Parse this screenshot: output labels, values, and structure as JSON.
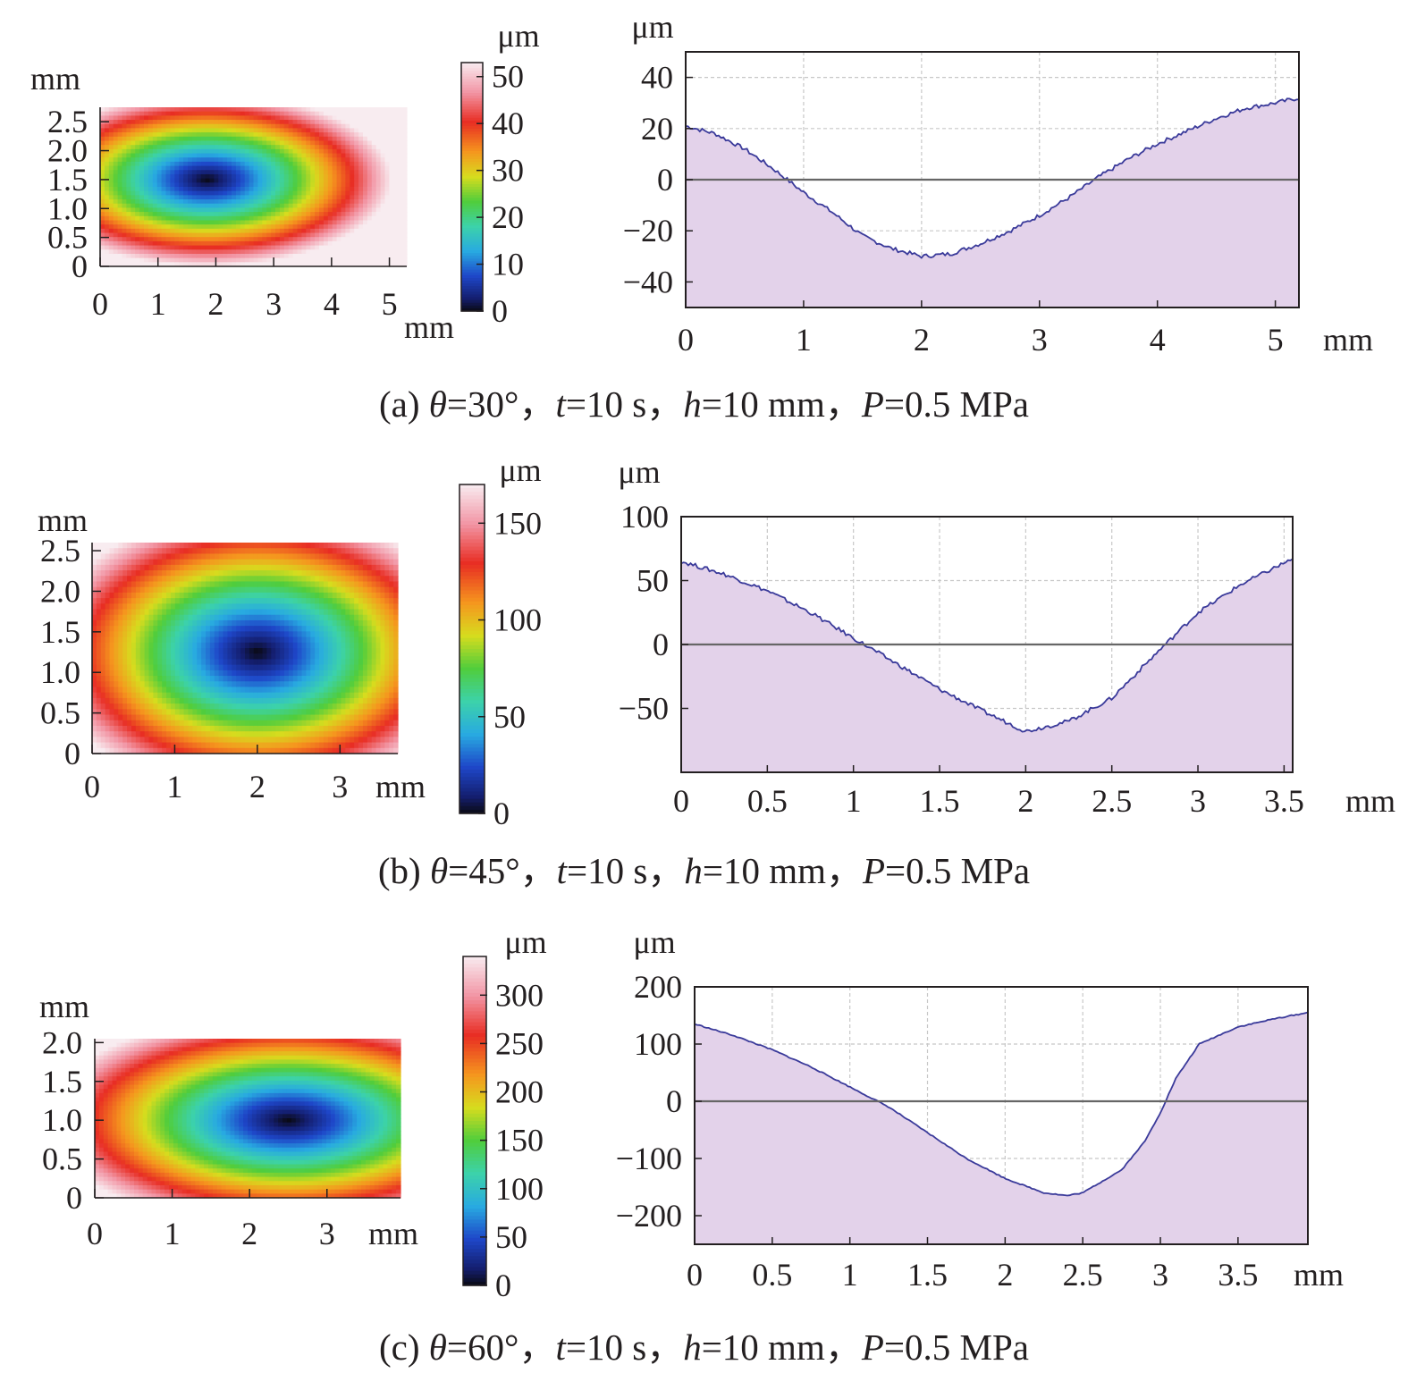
{
  "chart_data": [
    {
      "type": "heatmap",
      "panel": "a",
      "y_unit": "mm",
      "x_unit": "mm",
      "x_ticks": [
        "0",
        "1",
        "2",
        "3",
        "4",
        "5"
      ],
      "y_ticks": [
        "0",
        "0.5",
        "1.0",
        "1.5",
        "2.0",
        "2.5"
      ],
      "xlim": [
        0,
        5.3
      ],
      "ylim": [
        0,
        2.75
      ],
      "field": {
        "center_x": 1.85,
        "center_y": 1.5,
        "radius_x": 2.45,
        "radius_y": 1.15
      },
      "colorbar": {
        "unit": "μm",
        "ticks": [
          "0",
          "10",
          "20",
          "30",
          "40",
          "50"
        ],
        "range": [
          0,
          53
        ]
      }
    },
    {
      "type": "area",
      "panel": "a",
      "y_unit": "μm",
      "x_unit": "mm",
      "x_ticks": [
        "0",
        "1",
        "2",
        "3",
        "4",
        "5"
      ],
      "y_ticks": [
        "−40",
        "−20",
        "0",
        "20",
        "40"
      ],
      "xlim": [
        0,
        5.2
      ],
      "ylim": [
        -50,
        50
      ],
      "zero_line": true,
      "grid": true,
      "x": [
        0,
        0.25,
        0.5,
        0.75,
        1.0,
        1.25,
        1.5,
        1.75,
        2.0,
        2.25,
        2.5,
        2.75,
        3.0,
        3.25,
        3.5,
        3.75,
        4.0,
        4.25,
        4.5,
        4.75,
        5.0,
        5.2
      ],
      "y": [
        21,
        18,
        12,
        4,
        -5,
        -13,
        -22,
        -27,
        -30,
        -29,
        -25,
        -20,
        -14,
        -7,
        1,
        8,
        14,
        19,
        24,
        28,
        30,
        32
      ]
    },
    {
      "type": "heatmap",
      "panel": "b",
      "y_unit": "mm",
      "x_unit": "mm",
      "x_ticks": [
        "0",
        "1",
        "2",
        "3"
      ],
      "y_ticks": [
        "0",
        "0.5",
        "1.0",
        "1.5",
        "2.0",
        "2.5"
      ],
      "xlim": [
        0,
        3.7
      ],
      "ylim": [
        0,
        2.6
      ],
      "field": {
        "center_x": 2.0,
        "center_y": 1.25,
        "radius_x": 2.0,
        "radius_y": 1.35
      },
      "colorbar": {
        "unit": "μm",
        "ticks": [
          "0",
          "50",
          "100",
          "150"
        ],
        "range": [
          0,
          170
        ]
      }
    },
    {
      "type": "area",
      "panel": "b",
      "y_unit": "μm",
      "x_unit": "mm",
      "x_ticks": [
        "0",
        "0.5",
        "1",
        "1.5",
        "2",
        "2.5",
        "3",
        "3.5"
      ],
      "y_ticks": [
        "−50",
        "0",
        "50",
        "100"
      ],
      "xlim": [
        0,
        3.55
      ],
      "ylim": [
        -100,
        100
      ],
      "zero_line": true,
      "grid": true,
      "x": [
        0,
        0.25,
        0.5,
        0.75,
        1.0,
        1.25,
        1.5,
        1.75,
        2.0,
        2.25,
        2.5,
        2.75,
        3.0,
        3.25,
        3.55
      ],
      "y": [
        65,
        55,
        42,
        25,
        5,
        -15,
        -35,
        -52,
        -68,
        -60,
        -42,
        -8,
        25,
        47,
        67
      ]
    },
    {
      "type": "heatmap",
      "panel": "c",
      "y_unit": "mm",
      "x_unit": "mm",
      "x_ticks": [
        "0",
        "1",
        "2",
        "3"
      ],
      "y_ticks": [
        "0",
        "0.5",
        "1.0",
        "1.5",
        "2.0"
      ],
      "xlim": [
        0,
        3.95
      ],
      "ylim": [
        0,
        2.05
      ],
      "field": {
        "center_x": 2.5,
        "center_y": 1.0,
        "radius_x": 2.45,
        "radius_y": 1.05
      },
      "colorbar": {
        "unit": "μm",
        "ticks": [
          "0",
          "50",
          "100",
          "150",
          "200",
          "250",
          "300"
        ],
        "range": [
          0,
          340
        ]
      }
    },
    {
      "type": "area",
      "panel": "c",
      "y_unit": "μm",
      "x_unit": "mm",
      "x_ticks": [
        "0",
        "0.5",
        "1",
        "1.5",
        "2",
        "2.5",
        "3",
        "3.5"
      ],
      "y_ticks": [
        "−200",
        "−100",
        "0",
        "100",
        "200"
      ],
      "xlim": [
        0,
        3.95
      ],
      "ylim": [
        -250,
        200
      ],
      "zero_line": true,
      "grid": true,
      "x": [
        0,
        0.25,
        0.5,
        0.75,
        1.0,
        1.25,
        1.5,
        1.75,
        2.0,
        2.25,
        2.4,
        2.5,
        2.75,
        2.9,
        3.0,
        3.1,
        3.25,
        3.5,
        3.75,
        3.95
      ],
      "y": [
        135,
        115,
        90,
        60,
        25,
        -10,
        -55,
        -100,
        -135,
        -160,
        -165,
        -160,
        -120,
        -70,
        -20,
        40,
        100,
        130,
        145,
        155
      ]
    }
  ],
  "captions": {
    "a": {
      "letter": "(a) ",
      "theta_sym": "θ",
      "theta_val": "=30°，",
      "t_sym": "t",
      "t_val": "=10 s，",
      "h_sym": "h",
      "h_val": "=10 mm，",
      "p_sym": "P",
      "p_val": "=0.5 MPa"
    },
    "b": {
      "letter": "(b) ",
      "theta_sym": "θ",
      "theta_val": "=45°，",
      "t_sym": "t",
      "t_val": "=10 s，",
      "h_sym": "h",
      "h_val": "=10 mm，",
      "p_sym": "P",
      "p_val": "=0.5 MPa"
    },
    "c": {
      "letter": "(c) ",
      "theta_sym": "θ",
      "theta_val": "=60°，",
      "t_sym": "t",
      "t_val": "=10 s，",
      "h_sym": "h",
      "h_val": "=10 mm，",
      "p_sym": "P",
      "p_val": "=0.5 MPa"
    }
  },
  "colors": {
    "area_fill": "#e3d2ea",
    "line": "#3a3a9a",
    "zero_line": "#666666",
    "grid": "#c8c8c8",
    "axis": "#231f20",
    "background_map": "#f6e9ec"
  }
}
